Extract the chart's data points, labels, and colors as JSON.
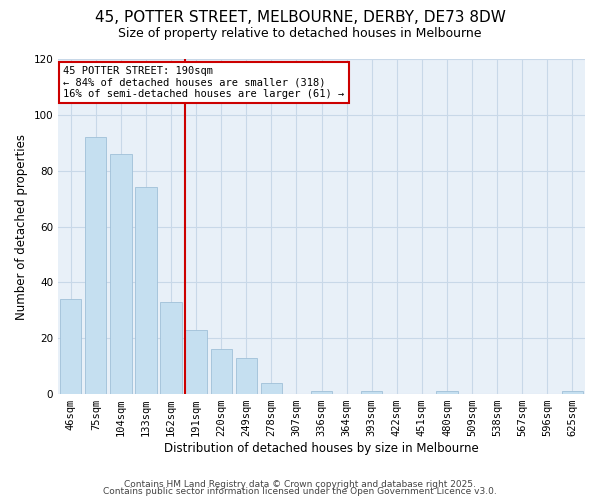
{
  "title": "45, POTTER STREET, MELBOURNE, DERBY, DE73 8DW",
  "subtitle": "Size of property relative to detached houses in Melbourne",
  "xlabel": "Distribution of detached houses by size in Melbourne",
  "ylabel": "Number of detached properties",
  "categories": [
    "46sqm",
    "75sqm",
    "104sqm",
    "133sqm",
    "162sqm",
    "191sqm",
    "220sqm",
    "249sqm",
    "278sqm",
    "307sqm",
    "336sqm",
    "364sqm",
    "393sqm",
    "422sqm",
    "451sqm",
    "480sqm",
    "509sqm",
    "538sqm",
    "567sqm",
    "596sqm",
    "625sqm"
  ],
  "values": [
    34,
    92,
    86,
    74,
    33,
    23,
    16,
    13,
    4,
    0,
    1,
    0,
    1,
    0,
    0,
    1,
    0,
    0,
    0,
    0,
    1
  ],
  "bar_color": "#c5dff0",
  "bar_edge_color": "#a0c0d8",
  "vline_x_index": 5,
  "vline_color": "#cc0000",
  "annotation_line1": "45 POTTER STREET: 190sqm",
  "annotation_line2": "← 84% of detached houses are smaller (318)",
  "annotation_line3": "16% of semi-detached houses are larger (61) →",
  "annotation_box_color": "#cc0000",
  "ylim": [
    0,
    120
  ],
  "yticks": [
    0,
    20,
    40,
    60,
    80,
    100,
    120
  ],
  "footer1": "Contains HM Land Registry data © Crown copyright and database right 2025.",
  "footer2": "Contains public sector information licensed under the Open Government Licence v3.0.",
  "bg_color": "#ffffff",
  "plot_bg_color": "#e8f0f8",
  "grid_color": "#c8d8e8",
  "title_fontsize": 11,
  "subtitle_fontsize": 9,
  "xlabel_fontsize": 8.5,
  "ylabel_fontsize": 8.5,
  "tick_fontsize": 7.5,
  "annotation_fontsize": 7.5,
  "footer_fontsize": 6.5
}
